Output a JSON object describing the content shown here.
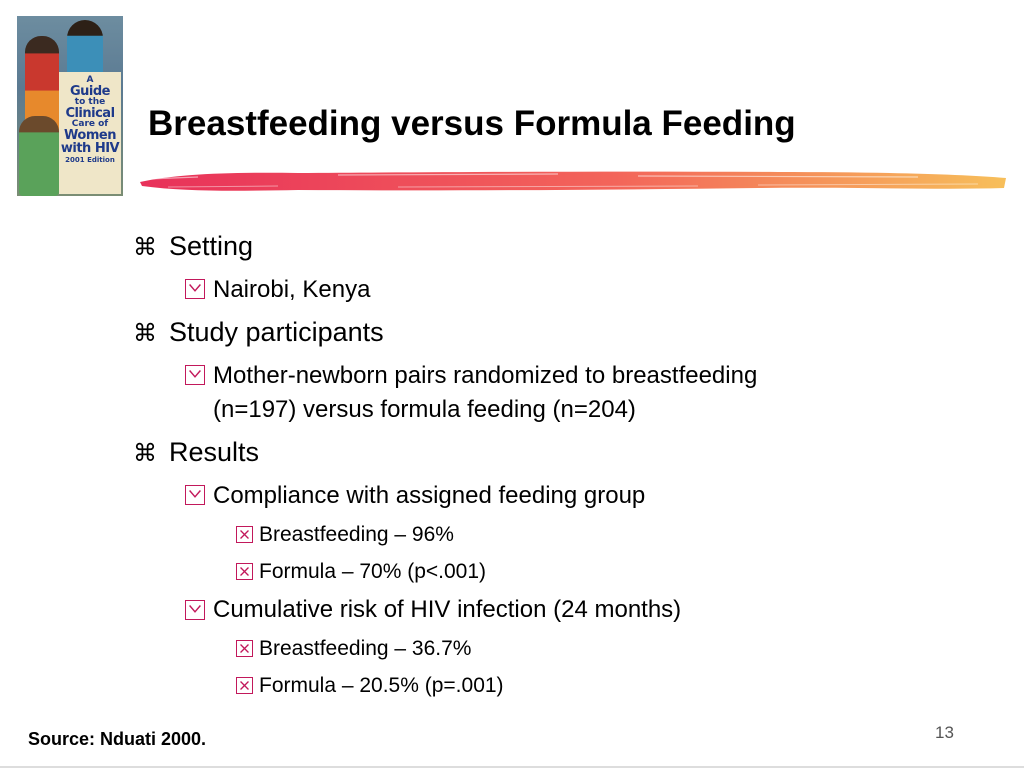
{
  "slide": {
    "title": "Breastfeeding versus Formula Feeding",
    "logo": {
      "name": "book-cover",
      "text_lines": [
        "A",
        "Guide",
        "to the",
        "Clinical",
        "Care of",
        "Women",
        "with HIV",
        "2001 Edition"
      ]
    },
    "bullets": [
      {
        "level": 1,
        "marker": "⌘",
        "text": "Setting"
      },
      {
        "level": 2,
        "marker": "y-box-icon",
        "text": "Nairobi, Kenya"
      },
      {
        "level": 1,
        "marker": "⌘",
        "text": "Study participants"
      },
      {
        "level": 2,
        "marker": "y-box-icon",
        "text": "Mother-newborn pairs randomized to breastfeeding"
      },
      {
        "level": 2,
        "marker": "",
        "text": "(n=197) versus formula feeding (n=204)"
      },
      {
        "level": 1,
        "marker": "⌘",
        "text": "Results"
      },
      {
        "level": 2,
        "marker": "y-box-icon",
        "text": "Compliance with assigned feeding group"
      },
      {
        "level": 3,
        "marker": "x-box-icon",
        "text": "Breastfeeding – 96%"
      },
      {
        "level": 3,
        "marker": "x-box-icon",
        "text": "Formula – 70% (p<.001)"
      },
      {
        "level": 2,
        "marker": "y-box-icon",
        "text": "Cumulative risk of HIV infection (24 months)"
      },
      {
        "level": 3,
        "marker": "x-box-icon",
        "text": "Breastfeeding – 36.7%"
      },
      {
        "level": 3,
        "marker": "x-box-icon",
        "text": "Formula – 20.5% (p=.001)"
      }
    ],
    "source": "Source: Nduati 2000.",
    "page_number": "13",
    "colors": {
      "brush_start": "#e8315a",
      "brush_mid": "#f3655a",
      "brush_end": "#f7bf5a",
      "bullet_box": "#c2185b"
    }
  }
}
